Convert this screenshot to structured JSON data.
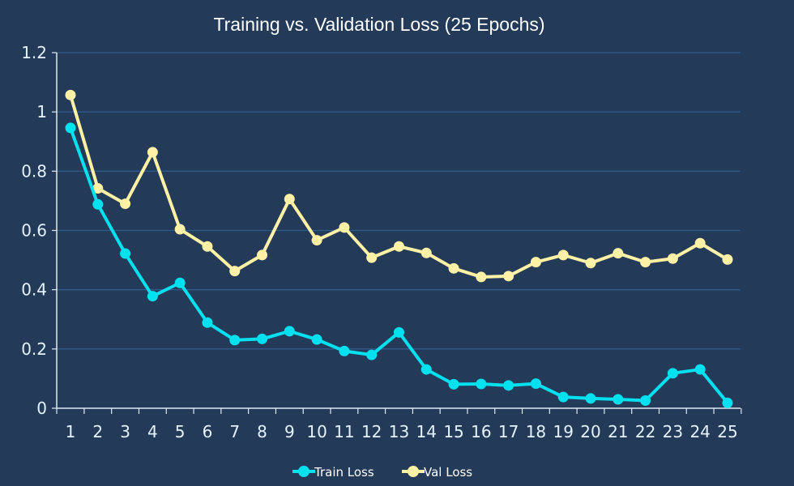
{
  "chart_data": {
    "type": "line",
    "title": "Training vs. Validation Loss (25 Epochs)",
    "xlabel": "",
    "ylabel": "",
    "x": [
      1,
      2,
      3,
      4,
      5,
      6,
      7,
      8,
      9,
      10,
      11,
      12,
      13,
      14,
      15,
      16,
      17,
      18,
      19,
      20,
      21,
      22,
      23,
      24,
      25
    ],
    "ylim": [
      0,
      1.2
    ],
    "yticks": [
      "0",
      "0.2",
      "0.4",
      "0.6",
      "0.8",
      "1",
      "1.2"
    ],
    "grid": true,
    "legend_position": "bottom",
    "series": [
      {
        "name": "Train Loss",
        "color": "#00e1f0",
        "values": [
          0.946,
          0.688,
          0.522,
          0.378,
          0.423,
          0.289,
          0.23,
          0.234,
          0.26,
          0.232,
          0.193,
          0.18,
          0.256,
          0.131,
          0.081,
          0.082,
          0.077,
          0.083,
          0.038,
          0.033,
          0.03,
          0.026,
          0.118,
          0.131,
          0.018
        ]
      },
      {
        "name": "Val Loss",
        "color": "#fff2a6",
        "values": [
          1.057,
          0.742,
          0.69,
          0.864,
          0.604,
          0.546,
          0.463,
          0.517,
          0.706,
          0.567,
          0.61,
          0.508,
          0.546,
          0.524,
          0.472,
          0.443,
          0.446,
          0.493,
          0.517,
          0.49,
          0.523,
          0.493,
          0.505,
          0.557,
          0.502
        ]
      }
    ]
  }
}
